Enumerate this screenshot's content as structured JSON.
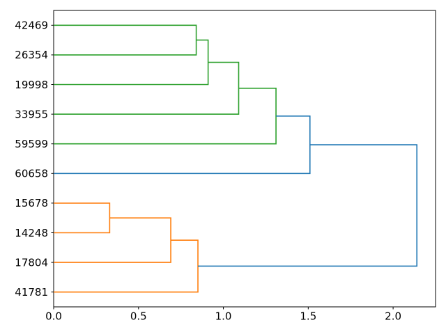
{
  "chart_data": {
    "type": "dendrogram",
    "orientation": "right",
    "title": "",
    "xlabel": "",
    "ylabel": "",
    "grid": false,
    "leaves": [
      "42469",
      "26354",
      "19998",
      "33955",
      "59599",
      "60658",
      "15678",
      "14248",
      "17804",
      "41781"
    ],
    "merges": [
      {
        "id": "g1",
        "children": [
          "leaf-0",
          "leaf-1"
        ],
        "height": 0.84,
        "color": "green"
      },
      {
        "id": "g2",
        "children": [
          "g1",
          "leaf-2"
        ],
        "height": 0.91,
        "color": "green"
      },
      {
        "id": "g3",
        "children": [
          "g2",
          "leaf-3"
        ],
        "height": 1.09,
        "color": "green"
      },
      {
        "id": "g4",
        "children": [
          "g3",
          "leaf-4"
        ],
        "height": 1.31,
        "color": "green"
      },
      {
        "id": "b1",
        "children": [
          "g4",
          "leaf-5"
        ],
        "height": 1.51,
        "color": "blue"
      },
      {
        "id": "o1",
        "children": [
          "leaf-6",
          "leaf-7"
        ],
        "height": 0.33,
        "color": "orange"
      },
      {
        "id": "o2",
        "children": [
          "o1",
          "leaf-8"
        ],
        "height": 0.69,
        "color": "orange"
      },
      {
        "id": "o3",
        "children": [
          "o2",
          "leaf-9"
        ],
        "height": 0.85,
        "color": "orange"
      },
      {
        "id": "root",
        "children": [
          "b1",
          "o3"
        ],
        "height": 2.14,
        "color": "blue"
      }
    ],
    "x_axis": {
      "xlim": [
        0,
        2.25
      ],
      "ticks": [
        {
          "value": 0.0,
          "label": "0.0"
        },
        {
          "value": 0.5,
          "label": "0.5"
        },
        {
          "value": 1.0,
          "label": "1.0"
        },
        {
          "value": 1.5,
          "label": "1.5"
        },
        {
          "value": 2.0,
          "label": "2.0"
        }
      ]
    },
    "colors": {
      "green": "#2ca02c",
      "orange": "#ff7f0e",
      "blue": "#1f77b4",
      "axis": "#000000",
      "background": "#ffffff"
    }
  }
}
